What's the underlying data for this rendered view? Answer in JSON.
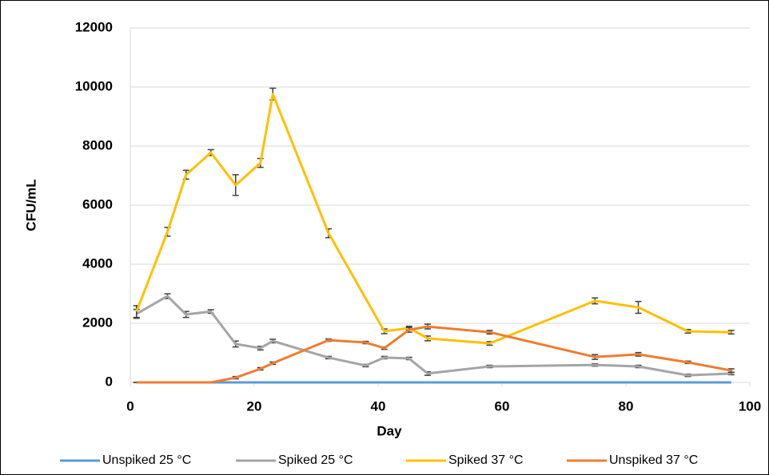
{
  "chart_data": {
    "type": "line",
    "xlabel": "Day",
    "ylabel": "CFU/mL",
    "xlim": [
      0,
      100
    ],
    "xticks": [
      0,
      20,
      40,
      60,
      80,
      100
    ],
    "ylim": [
      0,
      12000
    ],
    "yticks": [
      0,
      2000,
      4000,
      6000,
      8000,
      10000,
      12000
    ],
    "grid": true,
    "legend": "bottom",
    "series": [
      {
        "name": "Unspiked 25 °C",
        "color": "#5b9bd5",
        "x": [
          1,
          6,
          9,
          13,
          17,
          21,
          23,
          32,
          38,
          41,
          45,
          48,
          58,
          75,
          82,
          90,
          97
        ],
        "values": [
          0,
          0,
          0,
          0,
          0,
          0,
          0,
          0,
          0,
          0,
          0,
          0,
          0,
          0,
          0,
          0,
          0
        ]
      },
      {
        "name": "Spiked 25 °C",
        "color": "#a5a5a5",
        "x": [
          1,
          6,
          9,
          13,
          17,
          21,
          23,
          32,
          38,
          41,
          45,
          48,
          58,
          75,
          82,
          90,
          97
        ],
        "values": [
          2320,
          2920,
          2300,
          2400,
          1300,
          1160,
          1400,
          840,
          570,
          840,
          810,
          300,
          540,
          590,
          540,
          240,
          300
        ],
        "errors": [
          150,
          80,
          100,
          60,
          100,
          60,
          60,
          40,
          40,
          40,
          40,
          60,
          40,
          40,
          40,
          40,
          40
        ]
      },
      {
        "name": "Spiked 37 °C",
        "color": "#ffc000",
        "x": [
          1,
          6,
          9,
          13,
          17,
          21,
          23,
          32,
          41,
          45,
          48,
          58,
          75,
          82,
          90,
          97
        ],
        "values": [
          2400,
          5100,
          7030,
          7780,
          6680,
          7430,
          9760,
          5050,
          1730,
          1840,
          1490,
          1320,
          2760,
          2540,
          1730,
          1700
        ],
        "errors": [
          200,
          150,
          150,
          100,
          350,
          150,
          200,
          150,
          80,
          60,
          80,
          60,
          100,
          200,
          60,
          60
        ]
      },
      {
        "name": "Unspiked 37 °C",
        "color": "#ed7d31",
        "x": [
          1,
          6,
          9,
          13,
          17,
          21,
          23,
          32,
          38,
          41,
          45,
          48,
          58,
          75,
          82,
          90,
          97
        ],
        "values": [
          0,
          0,
          0,
          0,
          160,
          460,
          650,
          1430,
          1350,
          1160,
          1780,
          1890,
          1700,
          860,
          950,
          680,
          400
        ],
        "errors": [
          0,
          0,
          0,
          0,
          40,
          40,
          40,
          40,
          40,
          40,
          80,
          80,
          60,
          80,
          60,
          40,
          60
        ]
      }
    ]
  }
}
